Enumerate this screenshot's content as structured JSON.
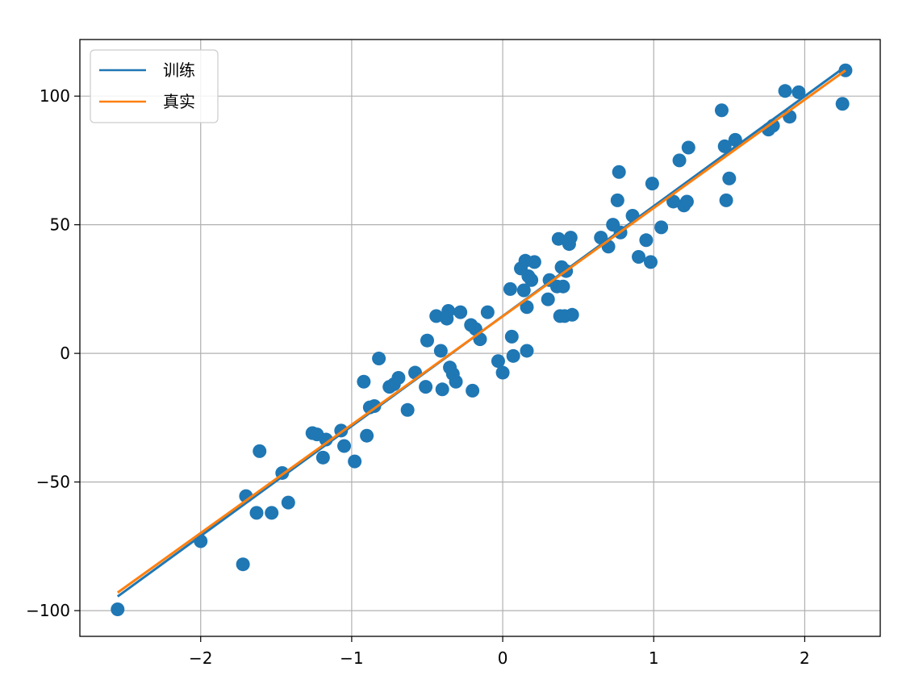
{
  "chart_data": {
    "type": "scatter",
    "title": "",
    "xlabel": "",
    "ylabel": "",
    "xlim": [
      -2.8,
      2.5
    ],
    "ylim": [
      -110,
      122
    ],
    "xticks": [
      -2,
      -1,
      0,
      1,
      2
    ],
    "xtick_labels": [
      "−2",
      "−1",
      "0",
      "1",
      "2"
    ],
    "yticks": [
      -100,
      -50,
      0,
      50,
      100
    ],
    "ytick_labels": [
      "−100",
      "−50",
      "0",
      "50",
      "100"
    ],
    "grid": true,
    "legend_position": "top-left",
    "colors": {
      "scatter": "#1f77b4",
      "train": "#1f77b4",
      "true": "#ff7f0e",
      "grid": "#b0b0b0"
    },
    "lines": [
      {
        "name": "训练",
        "color": "#1f77b4",
        "x": [
          -2.55,
          2.27
        ],
        "y": [
          -94.5,
          111.5
        ]
      },
      {
        "name": "真实",
        "color": "#ff7f0e",
        "x": [
          -2.55,
          2.27
        ],
        "y": [
          -93.0,
          110.0
        ]
      }
    ],
    "points": {
      "x": [
        -2.55,
        -2.0,
        -1.72,
        -1.7,
        -1.63,
        -1.61,
        -1.53,
        -1.46,
        -1.42,
        -1.26,
        -1.23,
        -1.19,
        -1.17,
        -1.07,
        -1.05,
        -0.98,
        -0.92,
        -0.9,
        -0.88,
        -0.85,
        -0.82,
        -0.75,
        -0.72,
        -0.69,
        -0.63,
        -0.58,
        -0.51,
        -0.5,
        -0.44,
        -0.41,
        -0.4,
        -0.37,
        -0.36,
        -0.35,
        -0.33,
        -0.31,
        -0.28,
        -0.21,
        -0.2,
        -0.18,
        -0.15,
        -0.1,
        -0.03,
        0.0,
        0.05,
        0.06,
        0.07,
        0.12,
        0.14,
        0.15,
        0.16,
        0.16,
        0.17,
        0.19,
        0.21,
        0.3,
        0.31,
        0.36,
        0.37,
        0.38,
        0.39,
        0.4,
        0.41,
        0.42,
        0.44,
        0.45,
        0.46,
        0.65,
        0.7,
        0.73,
        0.76,
        0.77,
        0.78,
        0.86,
        0.9,
        0.95,
        0.98,
        0.99,
        1.05,
        1.13,
        1.17,
        1.2,
        1.22,
        1.23,
        1.45,
        1.47,
        1.48,
        1.5,
        1.54,
        1.76,
        1.79,
        1.87,
        1.9,
        1.96,
        2.25,
        2.27
      ],
      "y": [
        -99.5,
        -73,
        -82,
        -55.5,
        -62,
        -38,
        -62,
        -46.5,
        -58,
        -31,
        -31.5,
        -40.5,
        -33.5,
        -30,
        -36,
        -42,
        -11,
        -32,
        -21,
        -20.5,
        -2,
        -13,
        -12,
        -9.5,
        -22,
        -7.5,
        -13,
        5,
        14.5,
        1,
        -14,
        13.5,
        16.5,
        -5.5,
        -8,
        -11,
        16,
        11,
        -14.5,
        9.5,
        5.5,
        16,
        -3,
        -7.5,
        25,
        6.5,
        -1,
        33,
        24.5,
        36,
        1,
        18,
        30,
        28.5,
        35.5,
        21,
        28.5,
        26,
        44.5,
        14.5,
        33.5,
        26,
        14.5,
        32,
        42.5,
        45,
        15,
        45,
        41.5,
        50,
        59.5,
        70.5,
        47,
        53.5,
        37.5,
        44,
        35.5,
        66,
        49,
        59,
        75,
        57.5,
        59,
        80,
        94.5,
        80.5,
        59.5,
        68,
        83,
        87,
        88.5,
        102,
        92,
        101.5,
        97,
        110
      ]
    }
  }
}
